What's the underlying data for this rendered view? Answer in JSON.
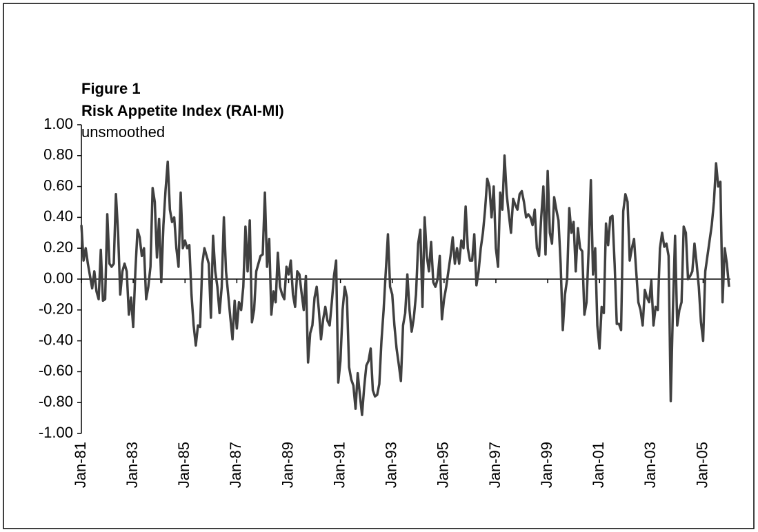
{
  "chart_data": {
    "type": "line",
    "title": "Figure 1",
    "subtitle": "Risk Appetite Index (RAI-MI)",
    "note": "unsmoothed",
    "categories": [
      "Jan-81",
      null,
      null,
      null,
      null,
      null,
      null,
      null,
      null,
      null,
      null,
      null,
      null,
      null,
      null,
      null,
      null,
      null,
      null,
      null,
      null,
      null,
      null,
      null,
      "Jan-83",
      null,
      null,
      null,
      null,
      null,
      null,
      null,
      null,
      null,
      null,
      null,
      null,
      null,
      null,
      null,
      null,
      null,
      null,
      null,
      null,
      null,
      null,
      null,
      "Jan-85",
      null,
      null,
      null,
      null,
      null,
      null,
      null,
      null,
      null,
      null,
      null,
      null,
      null,
      null,
      null,
      null,
      null,
      null,
      null,
      null,
      null,
      null,
      null,
      "Jan-87",
      null,
      null,
      null,
      null,
      null,
      null,
      null,
      null,
      null,
      null,
      null,
      null,
      null,
      null,
      null,
      null,
      null,
      null,
      null,
      null,
      null,
      null,
      null,
      "Jan-89",
      null,
      null,
      null,
      null,
      null,
      null,
      null,
      null,
      null,
      null,
      null,
      null,
      null,
      null,
      null,
      null,
      null,
      null,
      null,
      null,
      null,
      null,
      null,
      "Jan-91",
      null,
      null,
      null,
      null,
      null,
      null,
      null,
      null,
      null,
      null,
      null,
      null,
      null,
      null,
      null,
      null,
      null,
      null,
      null,
      null,
      null,
      null,
      null,
      "Jan-93",
      null,
      null,
      null,
      null,
      null,
      null,
      null,
      null,
      null,
      null,
      null,
      null,
      null,
      null,
      null,
      null,
      null,
      null,
      null,
      null,
      null,
      null,
      null,
      "Jan-95",
      null,
      null,
      null,
      null,
      null,
      null,
      null,
      null,
      null,
      null,
      null,
      null,
      null,
      null,
      null,
      null,
      null,
      null,
      null,
      null,
      null,
      null,
      null,
      "Jan-97",
      null,
      null,
      null,
      null,
      null,
      null,
      null,
      null,
      null,
      null,
      null,
      null,
      null,
      null,
      null,
      null,
      null,
      null,
      null,
      null,
      null,
      null,
      null,
      "Jan-99",
      null,
      null,
      null,
      null,
      null,
      null,
      null,
      null,
      null,
      null,
      null,
      null,
      null,
      null,
      null,
      null,
      null,
      null,
      null,
      null,
      null,
      null,
      null,
      "Jan-01",
      null,
      null,
      null,
      null,
      null,
      null,
      null,
      null,
      null,
      null,
      null,
      null,
      null,
      null,
      null,
      null,
      null,
      null,
      null,
      null,
      null,
      null,
      null,
      "Jan-03",
      null,
      null,
      null,
      null,
      null,
      null,
      null,
      null,
      null,
      null,
      null,
      null,
      null,
      null,
      null,
      null,
      null,
      null,
      null,
      null,
      null,
      null,
      null,
      "Jan-05",
      null,
      null,
      null,
      null,
      null,
      null,
      null,
      null,
      null,
      null,
      null,
      null
    ],
    "series": [
      {
        "name": "RAI-MI",
        "color": "#404040",
        "values": [
          0.35,
          0.12,
          0.2,
          0.1,
          0.02,
          -0.06,
          0.05,
          -0.08,
          -0.13,
          0.19,
          -0.14,
          -0.13,
          0.42,
          0.1,
          0.08,
          0.1,
          0.55,
          0.3,
          -0.1,
          0.05,
          0.1,
          0.05,
          -0.23,
          -0.12,
          -0.31,
          0.05,
          0.32,
          0.27,
          0.15,
          0.2,
          -0.13,
          -0.05,
          0.08,
          0.59,
          0.5,
          0.14,
          0.39,
          -0.02,
          0.35,
          0.58,
          0.76,
          0.45,
          0.37,
          0.4,
          0.2,
          0.08,
          0.56,
          0.2,
          0.25,
          0.2,
          0.22,
          -0.1,
          -0.3,
          -0.43,
          -0.3,
          -0.31,
          0.1,
          0.2,
          0.15,
          0.1,
          -0.25,
          0.28,
          0.05,
          -0.05,
          -0.22,
          -0.05,
          0.4,
          0.05,
          -0.1,
          -0.25,
          -0.39,
          -0.14,
          -0.32,
          -0.15,
          -0.2,
          -0.05,
          0.34,
          0.05,
          0.38,
          -0.28,
          -0.2,
          0.05,
          0.1,
          0.15,
          0.16,
          0.56,
          0.08,
          0.26,
          -0.23,
          -0.08,
          -0.15,
          0.17,
          -0.05,
          -0.1,
          -0.13,
          0.08,
          0.03,
          0.12,
          -0.1,
          -0.18,
          0.05,
          0.03,
          -0.09,
          -0.2,
          0.02,
          -0.54,
          -0.35,
          -0.3,
          -0.12,
          -0.05,
          -0.2,
          -0.39,
          -0.26,
          -0.18,
          -0.27,
          -0.3,
          -0.15,
          0.02,
          0.12,
          -0.67,
          -0.53,
          -0.2,
          -0.05,
          -0.12,
          -0.57,
          -0.65,
          -0.69,
          -0.84,
          -0.61,
          -0.75,
          -0.88,
          -0.7,
          -0.56,
          -0.53,
          -0.45,
          -0.72,
          -0.76,
          -0.75,
          -0.68,
          -0.4,
          -0.2,
          0.05,
          0.29,
          -0.05,
          -0.1,
          -0.3,
          -0.45,
          -0.55,
          -0.66,
          -0.3,
          -0.22,
          0.03,
          -0.2,
          -0.34,
          -0.25,
          -0.1,
          0.23,
          0.32,
          -0.18,
          0.4,
          0.15,
          0.05,
          0.24,
          -0.02,
          -0.05,
          0.0,
          0.15,
          -0.26,
          -0.13,
          -0.05,
          0.05,
          0.15,
          0.27,
          0.1,
          0.2,
          0.1,
          0.25,
          0.2,
          0.47,
          0.2,
          0.12,
          0.12,
          0.29,
          -0.04,
          0.05,
          0.2,
          0.3,
          0.45,
          0.65,
          0.6,
          0.4,
          0.6,
          0.2,
          0.08,
          0.56,
          0.45,
          0.8,
          0.55,
          0.42,
          0.3,
          0.52,
          0.48,
          0.45,
          0.55,
          0.57,
          0.5,
          0.4,
          0.42,
          0.4,
          0.35,
          0.45,
          0.2,
          0.15,
          0.4,
          0.6,
          0.16,
          0.7,
          0.3,
          0.23,
          0.53,
          0.45,
          0.38,
          0.1,
          -0.33,
          -0.1,
          0.0,
          0.46,
          0.3,
          0.37,
          0.05,
          0.33,
          0.2,
          0.18,
          -0.23,
          -0.15,
          0.2,
          0.64,
          0.03,
          0.2,
          -0.3,
          -0.45,
          -0.18,
          -0.22,
          0.36,
          0.22,
          0.4,
          0.41,
          0.1,
          -0.29,
          -0.29,
          -0.33,
          0.44,
          0.55,
          0.5,
          0.12,
          0.2,
          0.26,
          0.05,
          -0.15,
          -0.2,
          -0.3,
          -0.07,
          -0.12,
          -0.15,
          -0.01,
          -0.3,
          -0.18,
          -0.2,
          0.2,
          0.3,
          0.21,
          0.23,
          0.15,
          -0.79,
          -0.2,
          0.28,
          -0.3,
          -0.2,
          -0.15,
          0.34,
          0.3,
          0.0,
          0.02,
          0.05,
          0.23,
          0.1,
          -0.05,
          -0.28,
          -0.4,
          0.05,
          0.15,
          0.25,
          0.35,
          0.5,
          0.75,
          0.6,
          0.63,
          -0.15,
          0.2,
          0.1,
          -0.05
        ]
      }
    ],
    "ylim": [
      -1,
      1
    ],
    "yticks": [
      {
        "value": 1,
        "label": "1.00"
      },
      {
        "value": 0.8,
        "label": "0.80"
      },
      {
        "value": 0.6,
        "label": "0.60"
      },
      {
        "value": 0.4,
        "label": "0.40"
      },
      {
        "value": 0.2,
        "label": "0.20"
      },
      {
        "value": 0,
        "label": "0.00"
      },
      {
        "value": -0.2,
        "label": "-0.20"
      },
      {
        "value": -0.4,
        "label": "-0.40"
      },
      {
        "value": -0.6,
        "label": "-0.60"
      },
      {
        "value": -0.8,
        "label": "-0.80"
      },
      {
        "value": -1,
        "label": "-1.00"
      }
    ],
    "grid": false
  }
}
